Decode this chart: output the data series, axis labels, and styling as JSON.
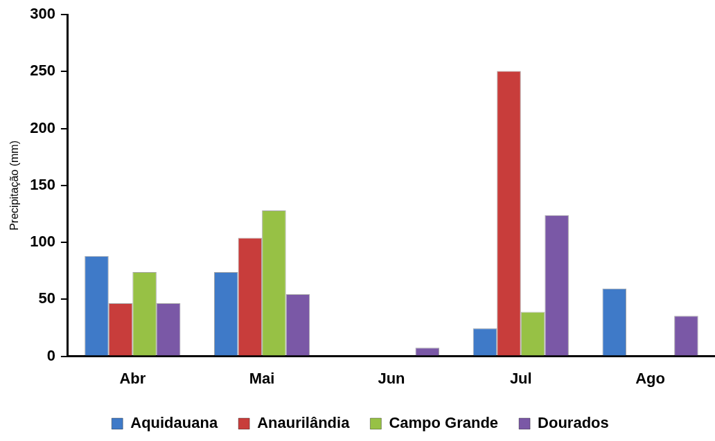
{
  "chart_data": {
    "type": "bar",
    "ylabel": "Precipitação (mm)",
    "categories": [
      "Abr",
      "Mai",
      "Jun",
      "Jul",
      "Ago"
    ],
    "series": [
      {
        "name": "Aquidauana",
        "color": "#3f7ac8",
        "values": [
          88,
          74,
          0,
          24.5,
          59.5
        ]
      },
      {
        "name": "Anaurilândia",
        "color": "#c83d3b",
        "values": [
          46.5,
          104,
          0,
          250.5,
          0
        ]
      },
      {
        "name": "Campo Grande",
        "color": "#97c145",
        "values": [
          74,
          128,
          0,
          39,
          0
        ]
      },
      {
        "name": "Dourados",
        "color": "#7a58a6",
        "values": [
          46.5,
          54.5,
          7.5,
          124,
          35.5
        ]
      }
    ],
    "ylim": [
      0,
      300
    ],
    "yticks": [
      0,
      50,
      100,
      150,
      200,
      250,
      300
    ],
    "grid": false,
    "legend": "bottom"
  }
}
